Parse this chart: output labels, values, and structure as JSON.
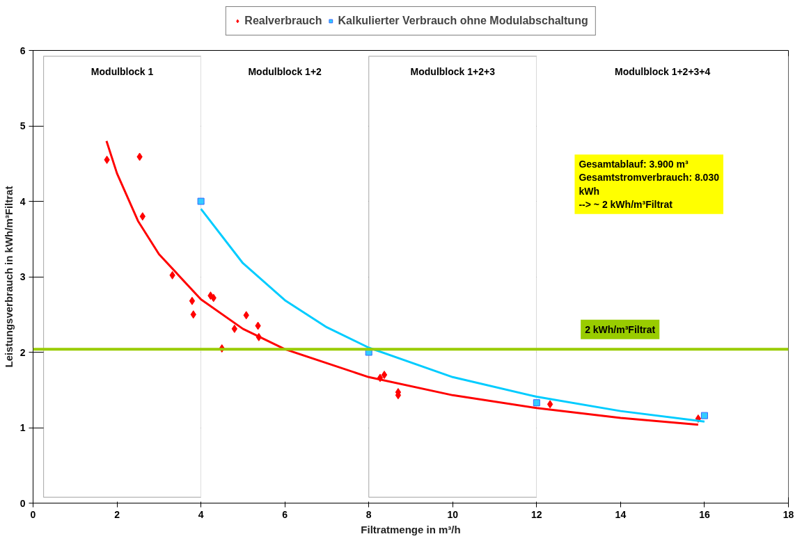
{
  "chart_data": {
    "type": "scatter",
    "xlabel": "Filtratmenge in m³/h",
    "ylabel": "Leistungsverbrauch in kWh/m³Filtrat",
    "xlim": [
      0,
      18
    ],
    "ylim": [
      0,
      6
    ],
    "xticks": [
      0,
      2,
      4,
      6,
      8,
      10,
      12,
      14,
      16,
      18
    ],
    "yticks": [
      0,
      1,
      2,
      3,
      4,
      5,
      6
    ],
    "grid": "y",
    "legend": "top",
    "series": [
      {
        "name": "Realverbrauch",
        "marker": "diamond",
        "color": "#ff0000",
        "x": [
          1.76,
          2.54,
          2.61,
          3.32,
          3.79,
          3.82,
          4.23,
          4.3,
          5.08,
          4.8,
          5.36,
          5.38,
          4.5,
          8.27,
          8.37,
          8.7,
          8.7,
          12.32,
          15.85
        ],
        "values": [
          4.55,
          4.59,
          3.8,
          3.02,
          2.68,
          2.5,
          2.75,
          2.72,
          2.49,
          2.31,
          2.35,
          2.2,
          2.05,
          1.66,
          1.7,
          1.47,
          1.43,
          1.31,
          1.12
        ]
      },
      {
        "name": "Kalkulierter Verbrauch ohne Modulabschaltung",
        "marker": "square",
        "color": "#33ccff",
        "x": [
          4,
          8,
          12,
          16
        ],
        "values": [
          4,
          2,
          1.33,
          1.16
        ]
      },
      {
        "type": "line",
        "marker": "none",
        "color": "#ff0000",
        "x": [
          1.75,
          2,
          2.5,
          3,
          4,
          5,
          6,
          8,
          10,
          12,
          14,
          15.85
        ],
        "values": [
          4.8,
          4.37,
          3.74,
          3.3,
          2.7,
          2.31,
          2.04,
          1.67,
          1.43,
          1.26,
          1.13,
          1.04
        ]
      },
      {
        "type": "line",
        "marker": "none",
        "color": "#00ccff",
        "x": [
          4,
          5,
          6,
          7,
          8,
          10,
          12,
          14,
          16
        ],
        "values": [
          3.9,
          3.18,
          2.69,
          2.33,
          2.06,
          1.67,
          1.41,
          1.22,
          1.08
        ]
      }
    ],
    "bands": [
      {
        "axis": "x",
        "from": 0.25,
        "to": 4,
        "label": "Modulblock 1",
        "color": "#000000"
      },
      {
        "axis": "x",
        "from": 4,
        "to": 8,
        "label": "Modulblock 1+2",
        "color": "#ffffff"
      },
      {
        "axis": "x",
        "from": 8,
        "to": 12,
        "label": "Modulblock 1+2+3",
        "color": "#000000"
      },
      {
        "axis": "x",
        "from": 12,
        "to": 18,
        "label": "Modulblock 1+2+3+4",
        "color": "#ffffff"
      }
    ],
    "ref_lines": [
      {
        "axis": "y",
        "value": 2.04,
        "label": "2 kWh/m³Filtrat",
        "color": "#99cc00"
      }
    ],
    "annotations": [
      "Gesamtablauf: 3.900 m³\nGesamtstromverbrauch: 8.030\nkWh\n--> ~ 2 kWh/m³Filtrat"
    ]
  }
}
